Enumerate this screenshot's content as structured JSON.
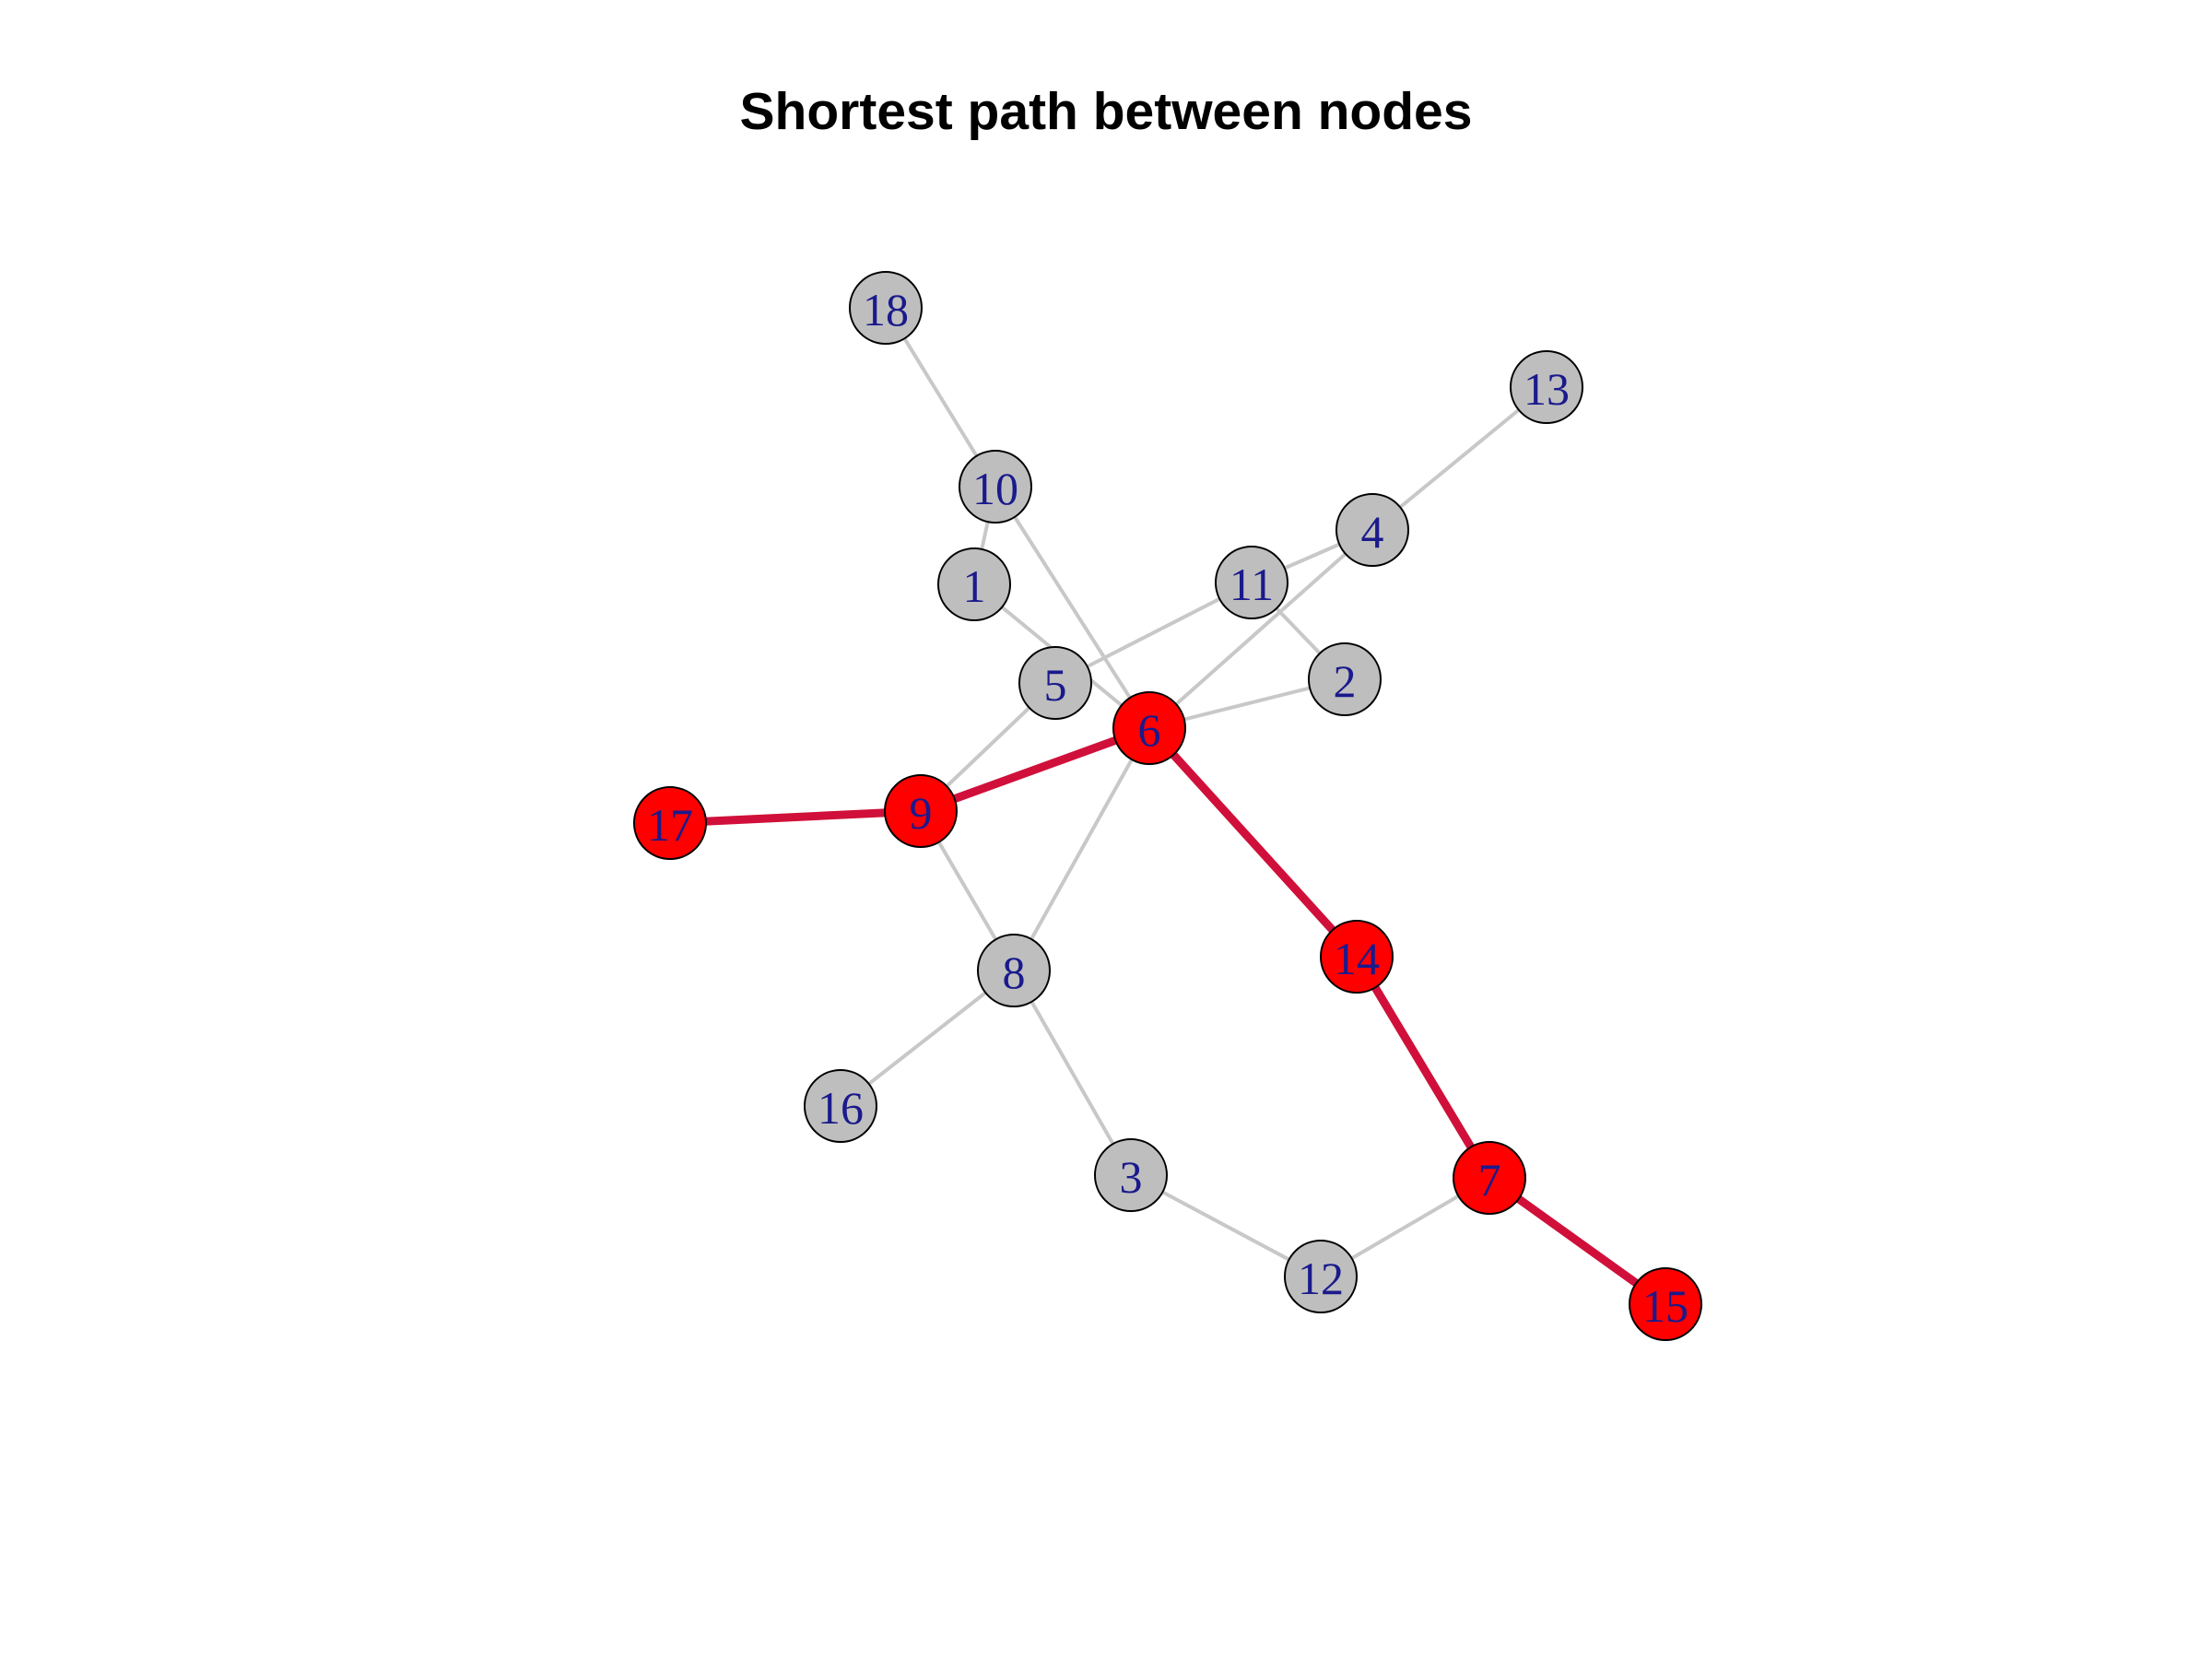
{
  "title": "Shortest path between nodes",
  "colors": {
    "edge_default": "#c8c8c8",
    "edge_path": "#d0103a",
    "node_default": "#bebebe",
    "node_path": "#ff0000",
    "node_stroke": "#000000",
    "label": "#1a1a8c"
  },
  "nodes": [
    {
      "id": "1",
      "label": "1",
      "on_path": false
    },
    {
      "id": "2",
      "label": "2",
      "on_path": false
    },
    {
      "id": "3",
      "label": "3",
      "on_path": false
    },
    {
      "id": "4",
      "label": "4",
      "on_path": false
    },
    {
      "id": "5",
      "label": "5",
      "on_path": false
    },
    {
      "id": "6",
      "label": "6",
      "on_path": true
    },
    {
      "id": "7",
      "label": "7",
      "on_path": true
    },
    {
      "id": "8",
      "label": "8",
      "on_path": false
    },
    {
      "id": "9",
      "label": "9",
      "on_path": true
    },
    {
      "id": "10",
      "label": "10",
      "on_path": false
    },
    {
      "id": "11",
      "label": "11",
      "on_path": false
    },
    {
      "id": "12",
      "label": "12",
      "on_path": false
    },
    {
      "id": "13",
      "label": "13",
      "on_path": false
    },
    {
      "id": "14",
      "label": "14",
      "on_path": true
    },
    {
      "id": "15",
      "label": "15",
      "on_path": true
    },
    {
      "id": "16",
      "label": "16",
      "on_path": false
    },
    {
      "id": "17",
      "label": "17",
      "on_path": true
    },
    {
      "id": "18",
      "label": "18",
      "on_path": false
    }
  ],
  "edges": [
    {
      "from": "18",
      "to": "10",
      "on_path": false
    },
    {
      "from": "10",
      "to": "1",
      "on_path": false
    },
    {
      "from": "10",
      "to": "6",
      "on_path": false
    },
    {
      "from": "1",
      "to": "6",
      "on_path": false
    },
    {
      "from": "13",
      "to": "4",
      "on_path": false
    },
    {
      "from": "4",
      "to": "11",
      "on_path": false
    },
    {
      "from": "4",
      "to": "6",
      "on_path": false
    },
    {
      "from": "11",
      "to": "5",
      "on_path": false
    },
    {
      "from": "11",
      "to": "2",
      "on_path": false
    },
    {
      "from": "2",
      "to": "6",
      "on_path": false
    },
    {
      "from": "5",
      "to": "9",
      "on_path": false
    },
    {
      "from": "6",
      "to": "8",
      "on_path": false
    },
    {
      "from": "9",
      "to": "8",
      "on_path": false
    },
    {
      "from": "8",
      "to": "16",
      "on_path": false
    },
    {
      "from": "8",
      "to": "3",
      "on_path": false
    },
    {
      "from": "3",
      "to": "12",
      "on_path": false
    },
    {
      "from": "12",
      "to": "7",
      "on_path": false
    },
    {
      "from": "17",
      "to": "9",
      "on_path": true
    },
    {
      "from": "9",
      "to": "6",
      "on_path": true
    },
    {
      "from": "6",
      "to": "14",
      "on_path": true
    },
    {
      "from": "14",
      "to": "7",
      "on_path": true
    },
    {
      "from": "7",
      "to": "15",
      "on_path": true
    }
  ]
}
